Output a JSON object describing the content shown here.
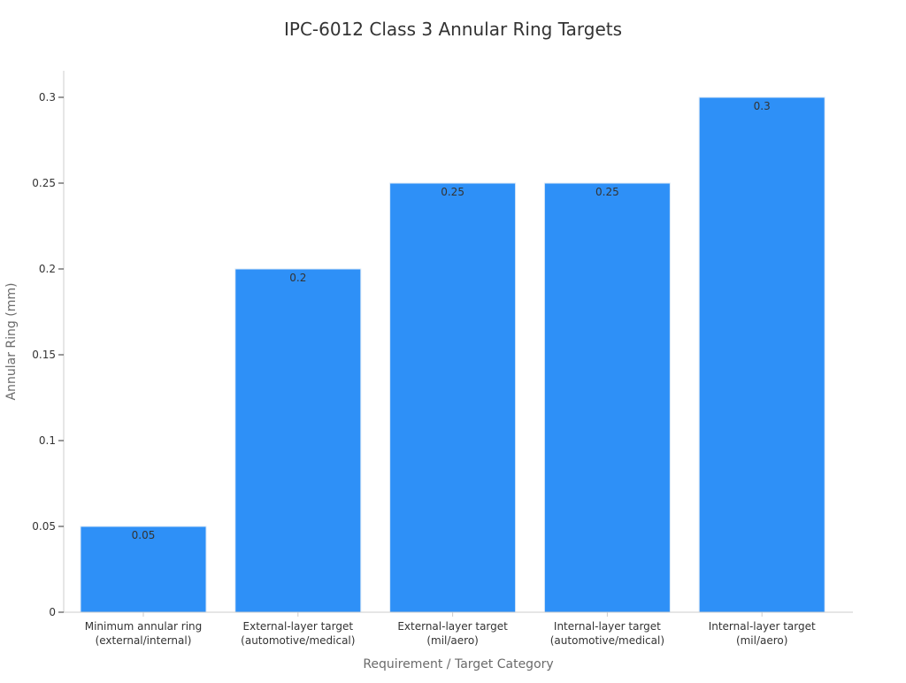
{
  "colors": {
    "bar": "#2e90f7",
    "axis": "#cccccc",
    "text": "#333333",
    "axis_title": "#6b6b6b"
  },
  "chart_data": {
    "type": "bar",
    "title": "IPC-6012 Class 3 Annular Ring Targets",
    "xlabel": "Requirement / Target Category",
    "ylabel": "Annular Ring (mm)",
    "categories": [
      [
        "Minimum annular ring",
        "(external/internal)"
      ],
      [
        "External-layer target",
        "(automotive/medical)"
      ],
      [
        "External-layer target",
        "(mil/aero)"
      ],
      [
        "Internal-layer target",
        "(automotive/medical)"
      ],
      [
        "Internal-layer target",
        "(mil/aero)"
      ]
    ],
    "values": [
      0.05,
      0.2,
      0.25,
      0.25,
      0.3
    ],
    "value_labels": [
      "0.05",
      "0.2",
      "0.25",
      "0.25",
      "0.3"
    ],
    "ylim": [
      0,
      0.3
    ],
    "yticks": [
      0,
      0.05,
      0.1,
      0.15,
      0.2,
      0.25,
      0.3
    ],
    "ytick_labels": [
      "0",
      "0.05",
      "0.1",
      "0.15",
      "0.2",
      "0.25",
      "0.3"
    ],
    "grid": false,
    "legend": "none"
  }
}
